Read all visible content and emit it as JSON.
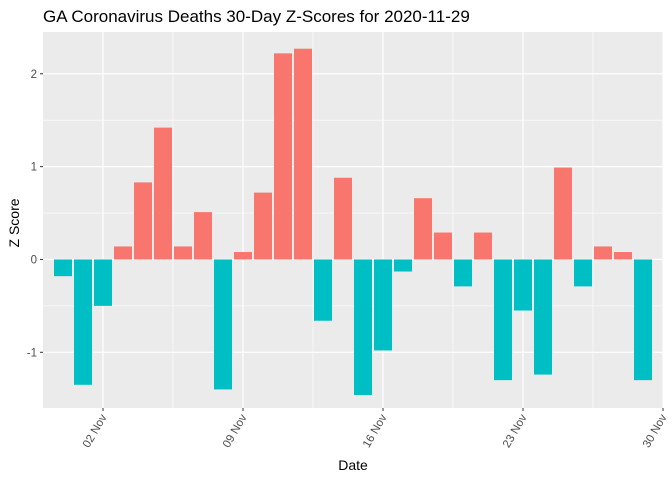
{
  "chart_data": {
    "type": "bar",
    "title": "GA Coronavirus Deaths 30-Day Z-Scores for 2020-11-29",
    "xlabel": "Date",
    "ylabel": "Z Score",
    "x_ticks": [
      {
        "label": "02 Nov",
        "date": "2020-11-02"
      },
      {
        "label": "09 Nov",
        "date": "2020-11-09"
      },
      {
        "label": "16 Nov",
        "date": "2020-11-16"
      },
      {
        "label": "23 Nov",
        "date": "2020-11-23"
      },
      {
        "label": "30 Nov",
        "date": "2020-11-30"
      }
    ],
    "y_ticks": [
      -1,
      0,
      1,
      2
    ],
    "xlim": [
      "2020-10-30",
      "2020-11-30"
    ],
    "ylim": [
      -1.6,
      2.45
    ],
    "grid": true,
    "legend": "none",
    "colors": {
      "positive": "#F8766D",
      "negative": "#00BFC4",
      "panel": "#EBEBEB",
      "grid": "#FFFFFF"
    },
    "x": [
      "2020-10-31",
      "2020-11-01",
      "2020-11-02",
      "2020-11-03",
      "2020-11-04",
      "2020-11-05",
      "2020-11-06",
      "2020-11-07",
      "2020-11-08",
      "2020-11-09",
      "2020-11-10",
      "2020-11-11",
      "2020-11-12",
      "2020-11-13",
      "2020-11-14",
      "2020-11-15",
      "2020-11-16",
      "2020-11-17",
      "2020-11-18",
      "2020-11-19",
      "2020-11-20",
      "2020-11-21",
      "2020-11-22",
      "2020-11-23",
      "2020-11-24",
      "2020-11-25",
      "2020-11-26",
      "2020-11-27",
      "2020-11-28",
      "2020-11-29"
    ],
    "values": [
      -0.18,
      -1.35,
      -0.5,
      0.14,
      0.83,
      1.42,
      0.14,
      0.51,
      -1.4,
      0.08,
      0.72,
      2.22,
      2.27,
      -0.66,
      0.88,
      -1.46,
      -0.98,
      -0.13,
      0.66,
      0.29,
      -0.29,
      0.29,
      -1.3,
      -0.55,
      -1.24,
      0.99,
      -0.29,
      0.14,
      0.08,
      -1.3
    ]
  }
}
